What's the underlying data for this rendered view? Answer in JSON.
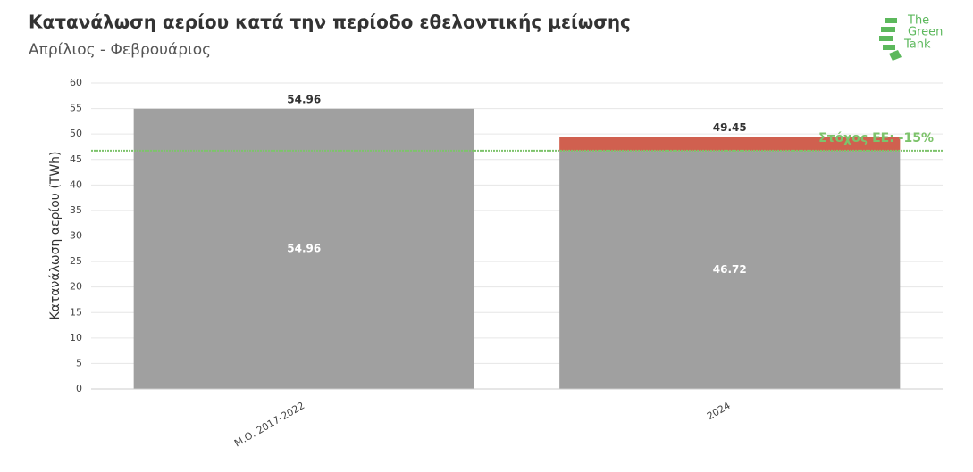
{
  "chart_data": {
    "type": "bar",
    "stacked": true,
    "title": "Κατανάλωση αερίου κατά την περίοδο εθελοντικής μείωσης",
    "subtitle": "Απρίλιος - Φεβρουάριος",
    "y_label": "Κατανάλωση αερίου (TWh)",
    "categories": [
      "Μ.Ο. 2017-2022",
      "2024"
    ],
    "series": [
      {
        "color": "#a0a0a0",
        "values": [
          54.96,
          46.72
        ]
      },
      {
        "color": "#d0604f",
        "values": [
          0,
          2.73
        ]
      }
    ],
    "totals": [
      54.96,
      49.45
    ],
    "target": {
      "value": 46.72,
      "label": "Στόχος ΕΕ: -15%",
      "color": "#7dc36b"
    },
    "ylim": [
      0,
      60
    ],
    "yticks": [
      0,
      5,
      10,
      15,
      20,
      25,
      30,
      35,
      40,
      45,
      50,
      55,
      60
    ],
    "grid": true,
    "logo": [
      "The",
      "Green",
      "Tank"
    ]
  }
}
